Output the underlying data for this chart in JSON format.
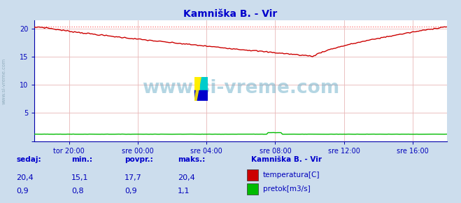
{
  "title": "Kamniška B. - Vir",
  "bg_color": "#ccdded",
  "plot_bg_color": "#ffffff",
  "grid_color_h": "#e8b8b8",
  "grid_color_v": "#e8b8b8",
  "title_color": "#0000cc",
  "label_color": "#0000bb",
  "value_color": "#0000bb",
  "tick_color": "#0000aa",
  "ylim": [
    0,
    21.5
  ],
  "yticks": [
    0,
    5,
    10,
    15,
    20
  ],
  "ytick_labels": [
    "",
    "5",
    "10",
    "15",
    "20"
  ],
  "xlim": [
    0,
    288
  ],
  "xtick_positions": [
    24,
    72,
    120,
    168,
    216,
    264
  ],
  "xtick_labels": [
    "tor 20:00",
    "sre 00:00",
    "sre 04:00",
    "sre 08:00",
    "sre 12:00",
    "sre 16:00"
  ],
  "temp_color": "#cc0000",
  "temp_max_line_color": "#ff6666",
  "flow_color": "#00bb00",
  "watermark_text": "www.si-vreme.com",
  "watermark_color": "#4499bb",
  "watermark_alpha": 0.4,
  "sidebar_text": "www.si-vreme.com",
  "sidebar_color": "#7799aa",
  "temp_max_value": 20.4,
  "temp_min_value": 15.1,
  "temp_start": 20.2,
  "temp_end": 20.4,
  "temp_min_idx": 195,
  "n_points": 289,
  "footer_headers": [
    "sedaj:",
    "min.:",
    "povpr.:",
    "maks.:"
  ],
  "footer_temp": [
    "20,4",
    "15,1",
    "17,7",
    "20,4"
  ],
  "footer_flow": [
    "0,9",
    "0,8",
    "0,9",
    "1,1"
  ],
  "legend_title": "Kamniška B. - Vir",
  "legend_items": [
    "temperatura[C]",
    "pretok[m3/s]"
  ],
  "legend_colors": [
    "#cc0000",
    "#00bb00"
  ],
  "flow_max_value": 1.1,
  "flow_min_value": 0.8,
  "flow_base": 0.9,
  "flow_bump_start": 163,
  "flow_bump_end": 173,
  "flow_scale": 0.07
}
